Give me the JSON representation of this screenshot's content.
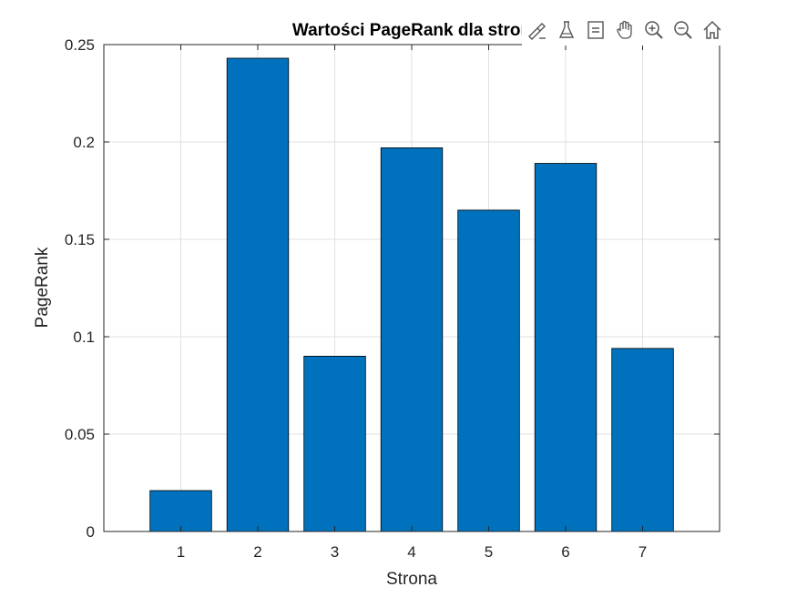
{
  "chart_data": {
    "type": "bar",
    "title": "Wartości PageRank dla stron",
    "xlabel": "Strona",
    "ylabel": "PageRank",
    "categories": [
      "1",
      "2",
      "3",
      "4",
      "5",
      "6",
      "7"
    ],
    "values": [
      0.021,
      0.243,
      0.09,
      0.197,
      0.165,
      0.189,
      0.094
    ],
    "xlim": [
      0,
      8
    ],
    "ylim": [
      0,
      0.25
    ],
    "yticks": [
      "0",
      "0.05",
      "0.1",
      "0.15",
      "0.2",
      "0.25"
    ],
    "ytick_values": [
      0,
      0.05,
      0.1,
      0.15,
      0.2,
      0.25
    ],
    "grid": true,
    "bar_color": "#0072BD"
  },
  "toolbar": {
    "items": [
      {
        "icon": "brush-icon"
      },
      {
        "icon": "datatip-icon"
      },
      {
        "icon": "legend-icon"
      },
      {
        "icon": "pan-hand-icon"
      },
      {
        "icon": "zoom-in-icon"
      },
      {
        "icon": "zoom-out-icon"
      },
      {
        "icon": "home-icon"
      }
    ]
  }
}
